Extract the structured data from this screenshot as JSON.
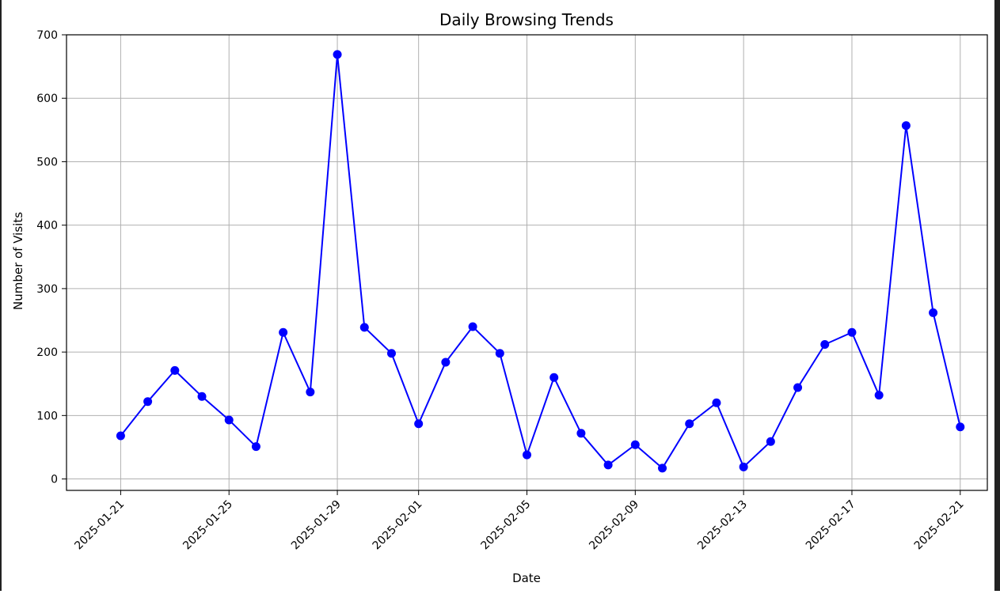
{
  "chart_data": {
    "type": "line",
    "title": "Daily Browsing Trends",
    "xlabel": "Date",
    "ylabel": "Number of Visits",
    "x": [
      "2025-01-21",
      "2025-01-22",
      "2025-01-23",
      "2025-01-24",
      "2025-01-25",
      "2025-01-26",
      "2025-01-27",
      "2025-01-28",
      "2025-01-29",
      "2025-01-30",
      "2025-01-31",
      "2025-02-01",
      "2025-02-02",
      "2025-02-03",
      "2025-02-04",
      "2025-02-05",
      "2025-02-06",
      "2025-02-07",
      "2025-02-08",
      "2025-02-09",
      "2025-02-10",
      "2025-02-11",
      "2025-02-12",
      "2025-02-13",
      "2025-02-14",
      "2025-02-15",
      "2025-02-16",
      "2025-02-17",
      "2025-02-18",
      "2025-02-19",
      "2025-02-20",
      "2025-02-21"
    ],
    "series": [
      {
        "values": [
          68,
          122,
          171,
          130,
          93,
          51,
          231,
          137,
          669,
          239,
          198,
          87,
          184,
          240,
          198,
          38,
          160,
          72,
          22,
          54,
          17,
          87,
          120,
          19,
          59,
          144,
          212,
          231,
          132,
          557,
          262,
          82
        ],
        "color": "#0000ff",
        "marker": "circle"
      }
    ],
    "xticks": [
      "2025-01-21",
      "2025-01-25",
      "2025-01-29",
      "2025-02-01",
      "2025-02-05",
      "2025-02-09",
      "2025-02-13",
      "2025-02-17",
      "2025-02-21"
    ],
    "yticks": [
      0,
      100,
      200,
      300,
      400,
      500,
      600,
      700
    ],
    "ylim": [
      -18,
      700
    ],
    "xlim": [
      "2025-01-19",
      "2025-02-22"
    ],
    "grid": true
  }
}
